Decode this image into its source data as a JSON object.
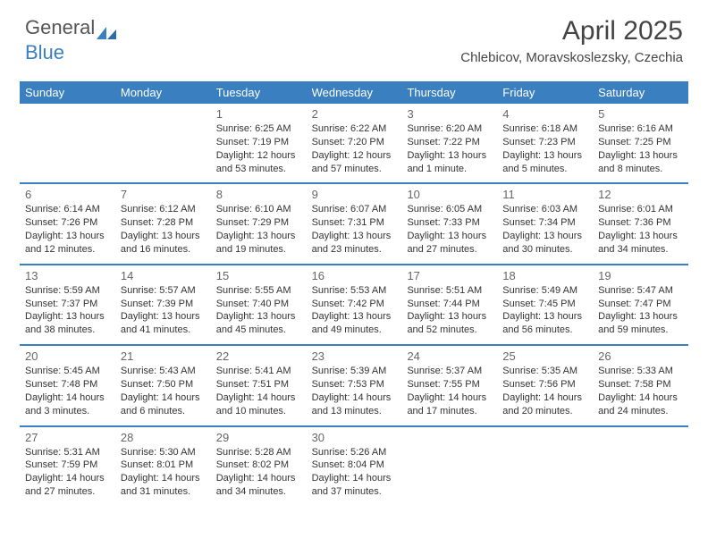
{
  "brand": {
    "part1": "General",
    "part2": "Blue"
  },
  "title": "April 2025",
  "location": "Chlebicov, Moravskoslezsky, Czechia",
  "colors": {
    "accent": "#3a7fbf",
    "text": "#333333",
    "background": "#ffffff"
  },
  "day_headers": [
    "Sunday",
    "Monday",
    "Tuesday",
    "Wednesday",
    "Thursday",
    "Friday",
    "Saturday"
  ],
  "weeks": [
    [
      null,
      null,
      {
        "n": "1",
        "sr": "Sunrise: 6:25 AM",
        "ss": "Sunset: 7:19 PM",
        "dl": "Daylight: 12 hours and 53 minutes."
      },
      {
        "n": "2",
        "sr": "Sunrise: 6:22 AM",
        "ss": "Sunset: 7:20 PM",
        "dl": "Daylight: 12 hours and 57 minutes."
      },
      {
        "n": "3",
        "sr": "Sunrise: 6:20 AM",
        "ss": "Sunset: 7:22 PM",
        "dl": "Daylight: 13 hours and 1 minute."
      },
      {
        "n": "4",
        "sr": "Sunrise: 6:18 AM",
        "ss": "Sunset: 7:23 PM",
        "dl": "Daylight: 13 hours and 5 minutes."
      },
      {
        "n": "5",
        "sr": "Sunrise: 6:16 AM",
        "ss": "Sunset: 7:25 PM",
        "dl": "Daylight: 13 hours and 8 minutes."
      }
    ],
    [
      {
        "n": "6",
        "sr": "Sunrise: 6:14 AM",
        "ss": "Sunset: 7:26 PM",
        "dl": "Daylight: 13 hours and 12 minutes."
      },
      {
        "n": "7",
        "sr": "Sunrise: 6:12 AM",
        "ss": "Sunset: 7:28 PM",
        "dl": "Daylight: 13 hours and 16 minutes."
      },
      {
        "n": "8",
        "sr": "Sunrise: 6:10 AM",
        "ss": "Sunset: 7:29 PM",
        "dl": "Daylight: 13 hours and 19 minutes."
      },
      {
        "n": "9",
        "sr": "Sunrise: 6:07 AM",
        "ss": "Sunset: 7:31 PM",
        "dl": "Daylight: 13 hours and 23 minutes."
      },
      {
        "n": "10",
        "sr": "Sunrise: 6:05 AM",
        "ss": "Sunset: 7:33 PM",
        "dl": "Daylight: 13 hours and 27 minutes."
      },
      {
        "n": "11",
        "sr": "Sunrise: 6:03 AM",
        "ss": "Sunset: 7:34 PM",
        "dl": "Daylight: 13 hours and 30 minutes."
      },
      {
        "n": "12",
        "sr": "Sunrise: 6:01 AM",
        "ss": "Sunset: 7:36 PM",
        "dl": "Daylight: 13 hours and 34 minutes."
      }
    ],
    [
      {
        "n": "13",
        "sr": "Sunrise: 5:59 AM",
        "ss": "Sunset: 7:37 PM",
        "dl": "Daylight: 13 hours and 38 minutes."
      },
      {
        "n": "14",
        "sr": "Sunrise: 5:57 AM",
        "ss": "Sunset: 7:39 PM",
        "dl": "Daylight: 13 hours and 41 minutes."
      },
      {
        "n": "15",
        "sr": "Sunrise: 5:55 AM",
        "ss": "Sunset: 7:40 PM",
        "dl": "Daylight: 13 hours and 45 minutes."
      },
      {
        "n": "16",
        "sr": "Sunrise: 5:53 AM",
        "ss": "Sunset: 7:42 PM",
        "dl": "Daylight: 13 hours and 49 minutes."
      },
      {
        "n": "17",
        "sr": "Sunrise: 5:51 AM",
        "ss": "Sunset: 7:44 PM",
        "dl": "Daylight: 13 hours and 52 minutes."
      },
      {
        "n": "18",
        "sr": "Sunrise: 5:49 AM",
        "ss": "Sunset: 7:45 PM",
        "dl": "Daylight: 13 hours and 56 minutes."
      },
      {
        "n": "19",
        "sr": "Sunrise: 5:47 AM",
        "ss": "Sunset: 7:47 PM",
        "dl": "Daylight: 13 hours and 59 minutes."
      }
    ],
    [
      {
        "n": "20",
        "sr": "Sunrise: 5:45 AM",
        "ss": "Sunset: 7:48 PM",
        "dl": "Daylight: 14 hours and 3 minutes."
      },
      {
        "n": "21",
        "sr": "Sunrise: 5:43 AM",
        "ss": "Sunset: 7:50 PM",
        "dl": "Daylight: 14 hours and 6 minutes."
      },
      {
        "n": "22",
        "sr": "Sunrise: 5:41 AM",
        "ss": "Sunset: 7:51 PM",
        "dl": "Daylight: 14 hours and 10 minutes."
      },
      {
        "n": "23",
        "sr": "Sunrise: 5:39 AM",
        "ss": "Sunset: 7:53 PM",
        "dl": "Daylight: 14 hours and 13 minutes."
      },
      {
        "n": "24",
        "sr": "Sunrise: 5:37 AM",
        "ss": "Sunset: 7:55 PM",
        "dl": "Daylight: 14 hours and 17 minutes."
      },
      {
        "n": "25",
        "sr": "Sunrise: 5:35 AM",
        "ss": "Sunset: 7:56 PM",
        "dl": "Daylight: 14 hours and 20 minutes."
      },
      {
        "n": "26",
        "sr": "Sunrise: 5:33 AM",
        "ss": "Sunset: 7:58 PM",
        "dl": "Daylight: 14 hours and 24 minutes."
      }
    ],
    [
      {
        "n": "27",
        "sr": "Sunrise: 5:31 AM",
        "ss": "Sunset: 7:59 PM",
        "dl": "Daylight: 14 hours and 27 minutes."
      },
      {
        "n": "28",
        "sr": "Sunrise: 5:30 AM",
        "ss": "Sunset: 8:01 PM",
        "dl": "Daylight: 14 hours and 31 minutes."
      },
      {
        "n": "29",
        "sr": "Sunrise: 5:28 AM",
        "ss": "Sunset: 8:02 PM",
        "dl": "Daylight: 14 hours and 34 minutes."
      },
      {
        "n": "30",
        "sr": "Sunrise: 5:26 AM",
        "ss": "Sunset: 8:04 PM",
        "dl": "Daylight: 14 hours and 37 minutes."
      },
      null,
      null,
      null
    ]
  ]
}
